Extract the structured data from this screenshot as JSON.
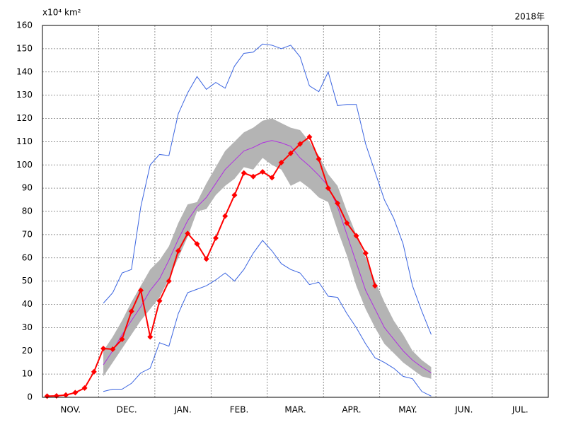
{
  "chart_data": {
    "type": "line",
    "ylabel": "x10⁴ km²",
    "year_label": "2018年",
    "categories": [
      null,
      null,
      null,
      "NOV.",
      null,
      null,
      null,
      null,
      null,
      "DEC.",
      null,
      null,
      null,
      null,
      null,
      "JAN.",
      null,
      null,
      null,
      null,
      null,
      "FEB.",
      null,
      null,
      null,
      null,
      null,
      "MAR.",
      null,
      null,
      null,
      null,
      null,
      "APR.",
      null,
      null,
      null,
      null,
      null,
      "MAY.",
      null,
      null,
      null,
      null,
      null,
      "JUN.",
      null,
      null,
      null,
      null,
      null,
      "JUL.",
      null,
      null
    ],
    "ylim": [
      0,
      160
    ],
    "yticks": [
      0,
      10,
      20,
      30,
      40,
      50,
      60,
      70,
      80,
      90,
      100,
      110,
      120,
      130,
      140,
      150,
      160
    ],
    "grid": true,
    "band": {
      "color": "#b4b4b4",
      "high": [
        null,
        null,
        null,
        null,
        null,
        null,
        20,
        26,
        33,
        41,
        48,
        55,
        59,
        65,
        75,
        83,
        84,
        92,
        99,
        106,
        110,
        114,
        116,
        119,
        120,
        118,
        116,
        115,
        110,
        104,
        96,
        91,
        80,
        70,
        60,
        50,
        41,
        33,
        27,
        20,
        16,
        13,
        null,
        null,
        null,
        null,
        null,
        null,
        null,
        null,
        null,
        null,
        null,
        null
      ],
      "low": [
        null,
        null,
        null,
        null,
        null,
        null,
        9,
        15,
        21,
        27,
        33,
        38,
        43,
        51,
        60,
        69,
        80,
        81,
        87,
        91,
        94,
        99,
        98,
        103,
        100,
        98,
        91,
        93,
        90,
        86,
        84,
        72,
        61,
        48,
        38,
        30,
        23,
        19,
        15,
        12,
        9,
        8,
        null,
        null,
        null,
        null,
        null,
        null,
        null,
        null,
        null,
        null,
        null,
        null
      ]
    },
    "series": [
      {
        "color": "#3a64e0",
        "values": [
          null,
          null,
          null,
          null,
          null,
          null,
          40.5,
          45,
          53.5,
          55,
          82,
          100,
          104.5,
          104,
          122,
          131,
          138,
          132.5,
          135.5,
          133,
          142.5,
          148,
          148.5,
          152,
          151.5,
          150,
          151.5,
          146.5,
          134,
          131.5,
          140,
          125.5,
          126,
          126,
          109,
          97,
          85,
          77,
          66,
          48,
          37,
          27,
          null,
          null,
          null,
          null,
          null,
          null,
          null,
          null,
          null,
          null,
          null,
          null
        ]
      },
      {
        "color": "#3a64e0",
        "values": [
          null,
          null,
          null,
          null,
          null,
          null,
          2.5,
          3.5,
          3.5,
          6,
          10.5,
          12.5,
          23.5,
          22,
          36,
          45,
          46.5,
          48,
          50.5,
          53.5,
          50,
          55,
          62,
          67.5,
          63,
          57.5,
          55,
          53.5,
          48.5,
          49.5,
          43.5,
          43,
          36,
          30,
          23,
          17,
          15,
          12.5,
          9,
          8,
          2.5,
          0.5,
          null,
          null,
          null,
          null,
          null,
          null,
          null,
          null,
          null,
          null,
          null,
          null
        ]
      },
      {
        "color": "#b030e0",
        "values": [
          null,
          null,
          null,
          null,
          null,
          null,
          14,
          20,
          27,
          33,
          39,
          46,
          51,
          59,
          68,
          76,
          82,
          86,
          92,
          98,
          102,
          106,
          107.5,
          109.5,
          110.5,
          109.5,
          108,
          103,
          99.5,
          95.5,
          91,
          82,
          70,
          58,
          46,
          38,
          30,
          25,
          20,
          16,
          13,
          10.5,
          null,
          null,
          null,
          null,
          null,
          null,
          null,
          null,
          null,
          null,
          null,
          null
        ]
      },
      {
        "color": "#ff0000",
        "markers": true,
        "values": [
          0.5,
          0.6,
          1,
          2,
          4,
          11,
          21,
          20.7,
          25,
          37,
          46,
          26,
          41.5,
          50,
          63,
          70.5,
          66,
          59.5,
          68.5,
          78,
          87,
          96.5,
          95,
          97,
          94.5,
          101,
          105,
          109,
          112,
          102.5,
          90,
          83.5,
          75,
          69.5,
          62,
          48,
          null,
          null,
          null,
          null,
          null,
          null,
          null,
          null,
          null,
          null,
          null,
          null,
          null,
          null,
          null,
          null,
          null,
          null
        ]
      }
    ]
  }
}
